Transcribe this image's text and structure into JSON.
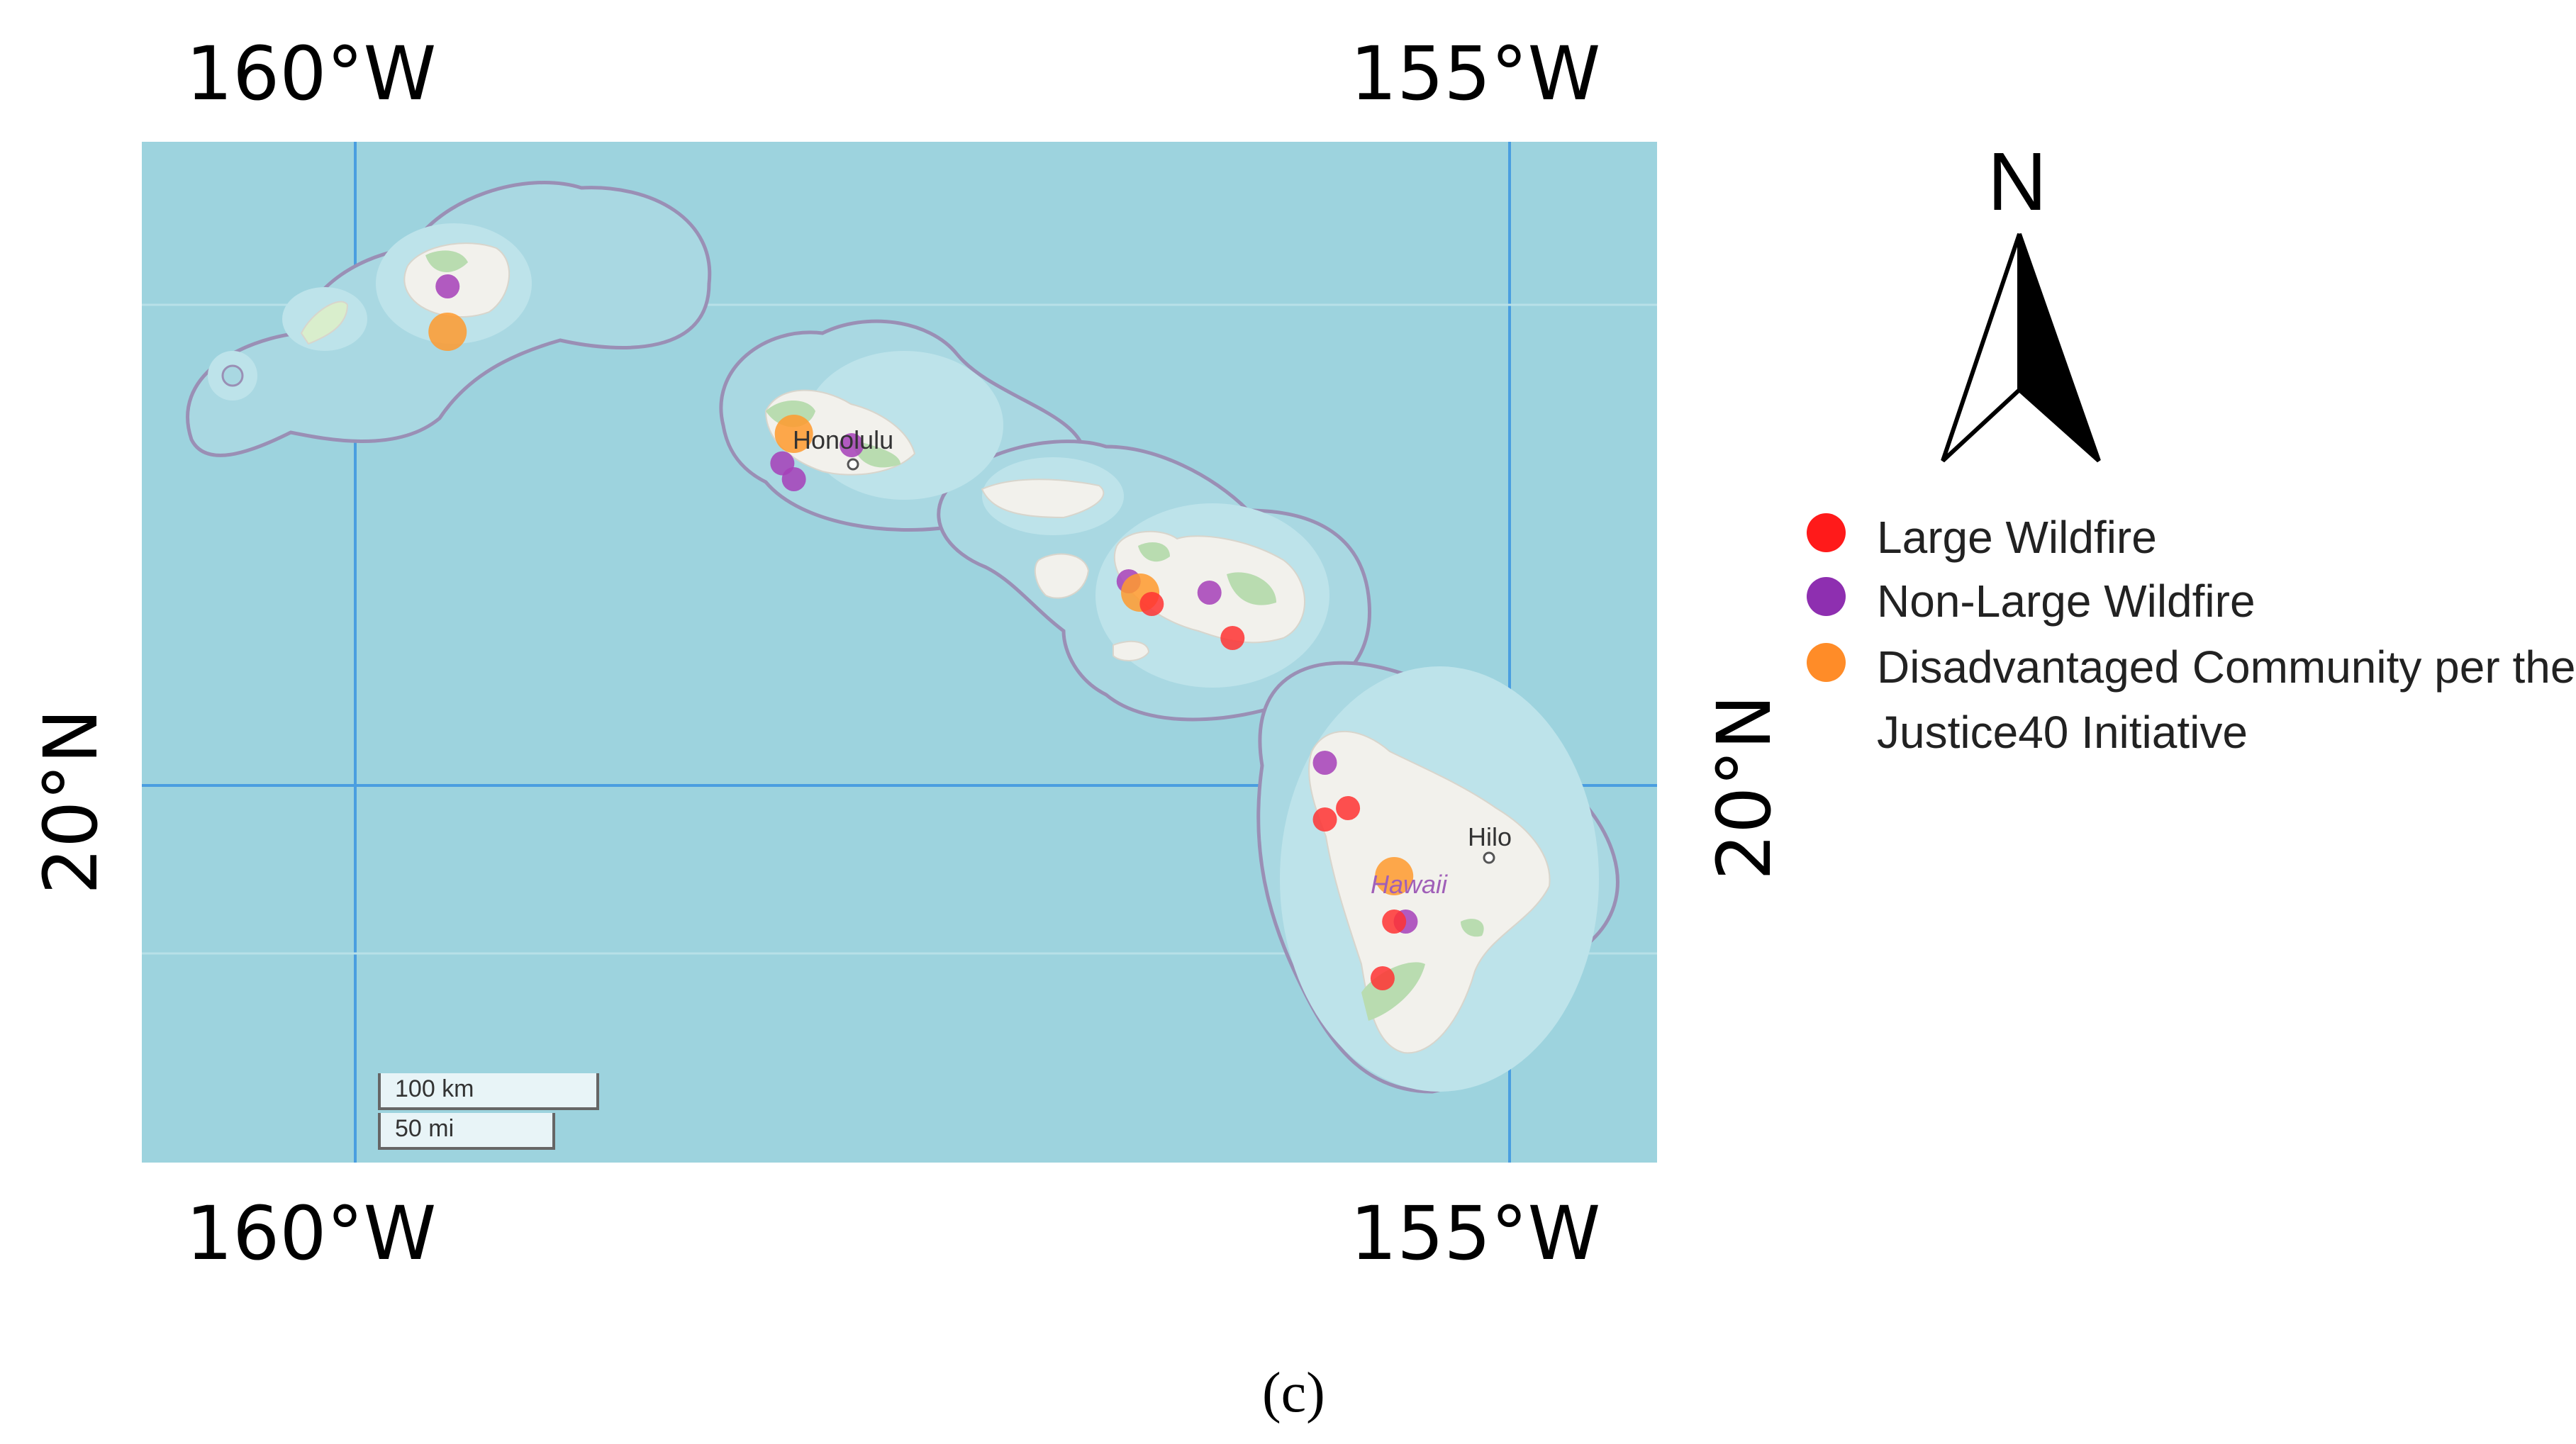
{
  "axes": {
    "top_left_lon": "160°W",
    "top_right_lon": "155°W",
    "bottom_left_lon": "160°W",
    "bottom_right_lon": "155°W",
    "left_lat": "20°N",
    "right_lat": "20°N"
  },
  "map": {
    "ocean_color": "#9dd3de",
    "land_color": "#f2f1ec",
    "graticule_color": "#4a9ee0",
    "places": {
      "honolulu": "Honolulu",
      "hilo": "Hilo",
      "hawaii": "Hawaii"
    },
    "scale": {
      "km": "100 km",
      "mi": "50 mi"
    }
  },
  "compass": {
    "label": "N"
  },
  "legend": [
    {
      "label": "Large Wildfire",
      "color": "#ff1a1a"
    },
    {
      "label": "Non-Large Wildfire",
      "color": "#8e2fb0"
    },
    {
      "label": "Disadvantaged Community per the Justice40 Initiative",
      "color": "#ff8c28"
    }
  ],
  "caption": "(c)",
  "markers": [
    {
      "type": "non-large",
      "lon": -159.6,
      "lat": 22.2
    },
    {
      "type": "disadvantaged",
      "lon": -159.6,
      "lat": 22.0
    },
    {
      "type": "disadvantaged",
      "lon": -158.1,
      "lat": 21.55
    },
    {
      "type": "non-large",
      "lon": -158.15,
      "lat": 21.42
    },
    {
      "type": "non-large",
      "lon": -158.1,
      "lat": 21.35
    },
    {
      "type": "non-large",
      "lon": -157.85,
      "lat": 21.5
    },
    {
      "type": "non-large",
      "lon": -156.65,
      "lat": 20.9
    },
    {
      "type": "disadvantaged",
      "lon": -156.6,
      "lat": 20.85
    },
    {
      "type": "large",
      "lon": -156.55,
      "lat": 20.8
    },
    {
      "type": "non-large",
      "lon": -156.3,
      "lat": 20.85
    },
    {
      "type": "large",
      "lon": -156.2,
      "lat": 20.65
    },
    {
      "type": "non-large",
      "lon": -155.8,
      "lat": 20.1
    },
    {
      "type": "large",
      "lon": -155.7,
      "lat": 19.9
    },
    {
      "type": "large",
      "lon": -155.8,
      "lat": 19.85
    },
    {
      "type": "disadvantaged",
      "lon": -155.5,
      "lat": 19.6
    },
    {
      "type": "non-large",
      "lon": -155.45,
      "lat": 19.4
    },
    {
      "type": "large",
      "lon": -155.5,
      "lat": 19.4
    },
    {
      "type": "large",
      "lon": -155.55,
      "lat": 19.15
    }
  ]
}
